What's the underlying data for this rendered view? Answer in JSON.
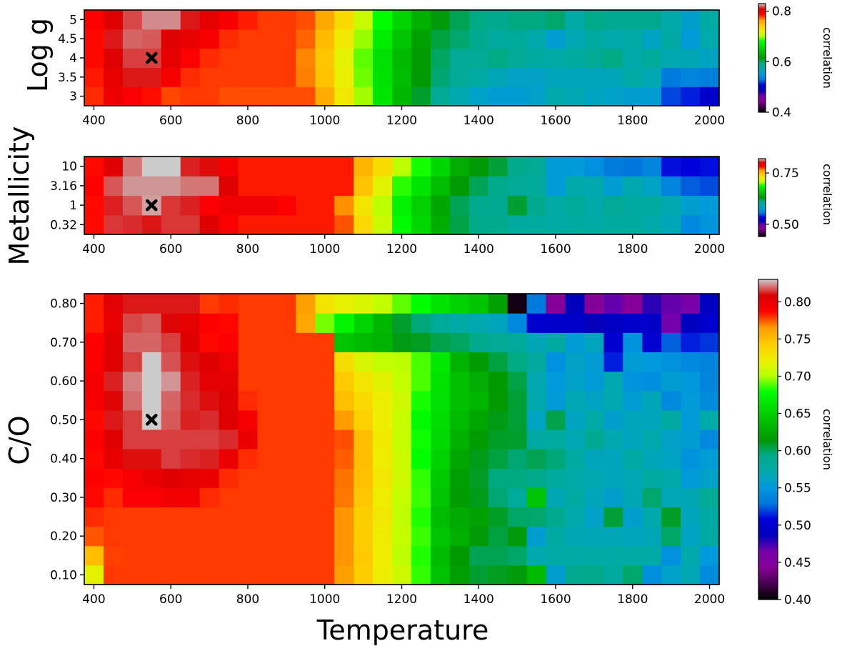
{
  "figure": {
    "xlabel": "Temperature"
  },
  "chart_data": [
    {
      "type": "heatmap",
      "ylabel": "Log g",
      "x": [
        400,
        450,
        500,
        550,
        600,
        650,
        700,
        750,
        800,
        850,
        900,
        950,
        1000,
        1050,
        1100,
        1150,
        1200,
        1250,
        1300,
        1350,
        1400,
        1450,
        1500,
        1550,
        1600,
        1650,
        1700,
        1750,
        1800,
        1850,
        1900,
        1950,
        2000
      ],
      "y": [
        "3",
        "3.5",
        "4",
        "4.5",
        "5"
      ],
      "xticks": [
        "400",
        "600",
        "800",
        "1000",
        "1200",
        "1400",
        "1600",
        "1800",
        "2000"
      ],
      "xlim": [
        375,
        2025
      ],
      "z": [
        [
          0.781,
          0.797,
          0.79,
          0.785,
          0.777,
          0.779,
          0.779,
          0.776,
          0.776,
          0.776,
          0.776,
          0.776,
          0.758,
          0.727,
          0.698,
          0.664,
          0.634,
          0.608,
          0.586,
          0.57,
          0.56,
          0.555,
          0.555,
          0.559,
          0.571,
          0.569,
          0.563,
          0.56,
          0.557,
          0.555,
          0.52,
          0.513,
          0.496
        ],
        [
          0.784,
          0.803,
          0.811,
          0.811,
          0.793,
          0.781,
          0.779,
          0.779,
          0.779,
          0.779,
          0.779,
          0.769,
          0.748,
          0.72,
          0.692,
          0.662,
          0.637,
          0.614,
          0.597,
          0.585,
          0.575,
          0.567,
          0.561,
          0.561,
          0.565,
          0.565,
          0.564,
          0.566,
          0.574,
          0.569,
          0.531,
          0.538,
          0.534
        ],
        [
          0.786,
          0.808,
          0.815,
          0.815,
          0.802,
          0.788,
          0.781,
          0.779,
          0.779,
          0.779,
          0.779,
          0.768,
          0.746,
          0.718,
          0.69,
          0.66,
          0.636,
          0.616,
          0.6,
          0.586,
          0.586,
          0.594,
          0.585,
          0.579,
          0.574,
          0.58,
          0.585,
          0.594,
          0.572,
          0.582,
          0.57,
          0.568,
          0.563
        ],
        [
          0.786,
          0.811,
          0.819,
          0.818,
          0.807,
          0.801,
          0.791,
          0.781,
          0.779,
          0.779,
          0.779,
          0.773,
          0.751,
          0.725,
          0.697,
          0.668,
          0.643,
          0.621,
          0.605,
          0.598,
          0.59,
          0.58,
          0.583,
          0.572,
          0.556,
          0.569,
          0.578,
          0.571,
          0.575,
          0.562,
          0.577,
          0.552,
          0.571
        ],
        [
          0.789,
          0.807,
          0.816,
          0.823,
          0.823,
          0.811,
          0.802,
          0.791,
          0.783,
          0.779,
          0.779,
          0.776,
          0.759,
          0.735,
          0.707,
          0.678,
          0.652,
          0.63,
          0.613,
          0.602,
          0.594,
          0.59,
          0.595,
          0.595,
          0.598,
          0.575,
          0.593,
          0.588,
          0.587,
          0.59,
          0.573,
          0.558,
          0.575
        ]
      ],
      "marker": {
        "x": 550,
        "y": "4"
      },
      "colorbar": {
        "label": "correlation",
        "min": 0.4,
        "max": 0.83,
        "ticks": [
          "0.4",
          "0.6",
          "0.8"
        ]
      }
    },
    {
      "type": "heatmap",
      "ylabel": "Metallicity",
      "x": [
        400,
        450,
        500,
        550,
        600,
        650,
        700,
        750,
        800,
        850,
        900,
        950,
        1000,
        1050,
        1100,
        1150,
        1200,
        1250,
        1300,
        1350,
        1400,
        1450,
        1500,
        1550,
        1600,
        1650,
        1700,
        1750,
        1800,
        1850,
        1900,
        1950,
        2000
      ],
      "y": [
        "0.32",
        "1",
        "3.16",
        "10"
      ],
      "xticks": [
        "400",
        "600",
        "800",
        "1000",
        "1200",
        "1400",
        "1600",
        "1800",
        "2000"
      ],
      "xlim": [
        375,
        2025
      ],
      "z": [
        [
          0.781,
          0.806,
          0.805,
          0.803,
          0.806,
          0.806,
          0.799,
          0.784,
          0.779,
          0.779,
          0.779,
          0.779,
          0.779,
          0.772,
          0.737,
          0.712,
          0.684,
          0.665,
          0.641,
          0.62,
          0.611,
          0.608,
          0.6,
          0.598,
          0.595,
          0.596,
          0.595,
          0.6,
          0.598,
          0.593,
          0.587,
          0.564,
          0.57
        ],
        [
          0.781,
          0.804,
          0.809,
          0.816,
          0.806,
          0.804,
          0.784,
          0.79,
          0.79,
          0.79,
          0.783,
          0.779,
          0.779,
          0.764,
          0.73,
          0.706,
          0.68,
          0.661,
          0.637,
          0.618,
          0.607,
          0.606,
          0.623,
          0.608,
          0.595,
          0.602,
          0.593,
          0.603,
          0.597,
          0.598,
          0.59,
          0.579,
          0.575
        ],
        [
          0.783,
          0.809,
          0.815,
          0.815,
          0.815,
          0.812,
          0.812,
          0.8,
          0.779,
          0.779,
          0.779,
          0.779,
          0.779,
          0.779,
          0.747,
          0.721,
          0.691,
          0.672,
          0.649,
          0.629,
          0.618,
          0.609,
          0.604,
          0.599,
          0.575,
          0.592,
          0.59,
          0.577,
          0.59,
          0.582,
          0.562,
          0.55,
          0.547
        ],
        [
          0.781,
          0.8,
          0.812,
          0.825,
          0.825,
          0.804,
          0.802,
          0.787,
          0.779,
          0.779,
          0.779,
          0.779,
          0.779,
          0.779,
          0.753,
          0.735,
          0.707,
          0.689,
          0.665,
          0.641,
          0.629,
          0.622,
          0.61,
          0.604,
          0.575,
          0.575,
          0.568,
          0.557,
          0.554,
          0.561,
          0.537,
          0.534,
          0.537
        ]
      ],
      "marker": {
        "x": 550,
        "y": "1"
      },
      "colorbar": {
        "label": "correlation",
        "min": 0.44,
        "max": 0.82,
        "ticks": [
          "0.50",
          "0.75"
        ]
      }
    },
    {
      "type": "heatmap",
      "ylabel": "C/O",
      "x": [
        400,
        450,
        500,
        550,
        600,
        650,
        700,
        750,
        800,
        850,
        900,
        950,
        1000,
        1050,
        1100,
        1150,
        1200,
        1250,
        1300,
        1350,
        1400,
        1450,
        1500,
        1550,
        1600,
        1650,
        1700,
        1750,
        1800,
        1850,
        1900,
        1950,
        2000
      ],
      "y": [
        "0.10",
        "0.15",
        "0.20",
        "0.25",
        "0.30",
        "0.35",
        "0.40",
        "0.45",
        "0.50",
        "0.55",
        "0.60",
        "0.65",
        "0.70",
        "0.75",
        "0.80"
      ],
      "yticks": [
        "0.10",
        "0.20",
        "0.30",
        "0.40",
        "0.50",
        "0.60",
        "0.70",
        "0.80"
      ],
      "xticks": [
        "400",
        "600",
        "800",
        "1000",
        "1200",
        "1400",
        "1600",
        "1800",
        "2000"
      ],
      "xlim": [
        375,
        2025
      ],
      "z": [
        [
          0.718,
          0.779,
          0.779,
          0.779,
          0.779,
          0.779,
          0.779,
          0.779,
          0.779,
          0.779,
          0.779,
          0.779,
          0.779,
          0.763,
          0.744,
          0.722,
          0.708,
          0.685,
          0.641,
          0.619,
          0.607,
          0.61,
          0.613,
          0.636,
          0.557,
          0.59,
          0.592,
          0.58,
          0.598,
          0.544,
          0.56,
          0.569,
          0.542
        ],
        [
          0.75,
          0.778,
          0.779,
          0.779,
          0.779,
          0.779,
          0.779,
          0.779,
          0.779,
          0.779,
          0.779,
          0.779,
          0.779,
          0.766,
          0.745,
          0.724,
          0.702,
          0.683,
          0.636,
          0.615,
          0.602,
          0.602,
          0.599,
          0.571,
          0.575,
          0.575,
          0.575,
          0.575,
          0.575,
          0.575,
          0.545,
          0.571,
          0.551
        ],
        [
          0.775,
          0.779,
          0.779,
          0.779,
          0.779,
          0.779,
          0.779,
          0.779,
          0.779,
          0.779,
          0.779,
          0.779,
          0.779,
          0.766,
          0.744,
          0.723,
          0.705,
          0.686,
          0.642,
          0.629,
          0.614,
          0.605,
          0.613,
          0.556,
          0.577,
          0.568,
          0.567,
          0.567,
          0.564,
          0.567,
          0.599,
          0.562,
          0.577
        ],
        [
          0.781,
          0.779,
          0.779,
          0.779,
          0.779,
          0.779,
          0.779,
          0.779,
          0.779,
          0.779,
          0.779,
          0.779,
          0.779,
          0.766,
          0.742,
          0.726,
          0.702,
          0.683,
          0.637,
          0.626,
          0.62,
          0.609,
          0.599,
          0.598,
          0.589,
          0.572,
          0.56,
          0.606,
          0.558,
          0.571,
          0.609,
          0.564,
          0.578
        ],
        [
          0.786,
          0.781,
          0.79,
          0.79,
          0.795,
          0.795,
          0.781,
          0.779,
          0.779,
          0.779,
          0.779,
          0.779,
          0.779,
          0.77,
          0.746,
          0.723,
          0.704,
          0.686,
          0.642,
          0.617,
          0.611,
          0.597,
          0.582,
          0.642,
          0.568,
          0.577,
          0.566,
          0.558,
          0.568,
          0.598,
          0.567,
          0.568,
          0.585
        ],
        [
          0.787,
          0.786,
          0.792,
          0.798,
          0.806,
          0.803,
          0.797,
          0.781,
          0.779,
          0.779,
          0.779,
          0.779,
          0.779,
          0.771,
          0.749,
          0.727,
          0.708,
          0.685,
          0.646,
          0.618,
          0.609,
          0.595,
          0.595,
          0.592,
          0.581,
          0.573,
          0.57,
          0.565,
          0.569,
          0.579,
          0.573,
          0.552,
          0.559
        ],
        [
          0.786,
          0.803,
          0.81,
          0.81,
          0.815,
          0.813,
          0.812,
          0.799,
          0.781,
          0.779,
          0.779,
          0.779,
          0.779,
          0.774,
          0.75,
          0.724,
          0.707,
          0.679,
          0.651,
          0.624,
          0.611,
          0.605,
          0.597,
          0.602,
          0.596,
          0.578,
          0.565,
          0.564,
          0.576,
          0.567,
          0.562,
          0.547,
          0.554
        ],
        [
          0.788,
          0.806,
          0.815,
          0.815,
          0.815,
          0.815,
          0.815,
          0.813,
          0.799,
          0.779,
          0.779,
          0.779,
          0.779,
          0.776,
          0.75,
          0.725,
          0.705,
          0.681,
          0.656,
          0.63,
          0.617,
          0.609,
          0.608,
          0.577,
          0.58,
          0.569,
          0.587,
          0.57,
          0.564,
          0.571,
          0.561,
          0.555,
          0.541
        ],
        [
          0.786,
          0.811,
          0.815,
          0.831,
          0.818,
          0.812,
          0.813,
          0.806,
          0.793,
          0.779,
          0.779,
          0.779,
          0.779,
          0.764,
          0.741,
          0.722,
          0.706,
          0.677,
          0.657,
          0.636,
          0.623,
          0.612,
          0.607,
          0.563,
          0.603,
          0.563,
          0.574,
          0.558,
          0.565,
          0.565,
          0.578,
          0.552,
          0.573
        ],
        [
          0.792,
          0.809,
          0.82,
          0.831,
          0.819,
          0.813,
          0.81,
          0.807,
          0.781,
          0.779,
          0.779,
          0.779,
          0.779,
          0.749,
          0.736,
          0.722,
          0.708,
          0.682,
          0.66,
          0.64,
          0.633,
          0.615,
          0.607,
          0.571,
          0.553,
          0.569,
          0.563,
          0.57,
          0.555,
          0.566,
          0.541,
          0.552,
          0.542
        ],
        [
          0.794,
          0.812,
          0.822,
          0.831,
          0.824,
          0.812,
          0.805,
          0.804,
          0.779,
          0.779,
          0.779,
          0.779,
          0.779,
          0.745,
          0.728,
          0.717,
          0.704,
          0.688,
          0.662,
          0.64,
          0.627,
          0.615,
          0.604,
          0.57,
          0.551,
          0.56,
          0.553,
          0.57,
          0.547,
          0.544,
          0.556,
          0.549,
          0.538
        ],
        [
          0.789,
          0.807,
          0.815,
          0.831,
          0.817,
          0.81,
          0.807,
          0.797,
          0.779,
          0.779,
          0.779,
          0.779,
          0.779,
          0.733,
          0.712,
          0.704,
          0.701,
          0.688,
          0.666,
          0.632,
          0.616,
          0.605,
          0.594,
          0.58,
          0.545,
          0.561,
          0.554,
          0.513,
          0.554,
          0.551,
          0.546,
          0.541,
          0.536
        ],
        [
          0.787,
          0.806,
          0.819,
          0.819,
          0.815,
          0.807,
          0.786,
          0.787,
          0.779,
          0.779,
          0.779,
          0.779,
          0.779,
          0.642,
          0.636,
          0.631,
          0.612,
          0.61,
          0.603,
          0.6,
          0.592,
          0.585,
          0.582,
          0.567,
          0.578,
          0.554,
          0.564,
          0.5,
          0.547,
          0.5,
          0.525,
          0.513,
          0.517
        ],
        [
          0.783,
          0.801,
          0.816,
          0.818,
          0.809,
          0.803,
          0.789,
          0.786,
          0.779,
          0.779,
          0.779,
          0.761,
          0.693,
          0.674,
          0.652,
          0.634,
          0.608,
          0.596,
          0.583,
          0.574,
          0.57,
          0.564,
          0.541,
          0.498,
          0.497,
          0.497,
          0.485,
          0.492,
          0.496,
          0.496,
          0.465,
          0.49,
          0.498
        ],
        [
          0.783,
          0.805,
          0.811,
          0.811,
          0.811,
          0.811,
          0.779,
          0.781,
          0.779,
          0.779,
          0.779,
          0.763,
          0.729,
          0.719,
          0.713,
          0.704,
          0.69,
          0.678,
          0.662,
          0.651,
          0.643,
          0.62,
          0.405,
          0.531,
          0.445,
          0.487,
          0.445,
          0.468,
          0.445,
          0.478,
          0.468,
          0.463,
          0.491
        ]
      ],
      "marker": {
        "x": 550,
        "y": "0.50"
      },
      "colorbar": {
        "label": "correlation",
        "min": 0.4,
        "max": 0.83,
        "ticks": [
          "0.40",
          "0.45",
          "0.50",
          "0.55",
          "0.60",
          "0.65",
          "0.70",
          "0.75",
          "0.80"
        ]
      }
    }
  ],
  "colormap": {
    "name": "nipy_spectral",
    "stops": [
      [
        0.0,
        "#000000"
      ],
      [
        0.05,
        "#470051"
      ],
      [
        0.1,
        "#860097"
      ],
      [
        0.15,
        "#7700aa"
      ],
      [
        0.2,
        "#0000bb"
      ],
      [
        0.25,
        "#0000dd"
      ],
      [
        0.3,
        "#0077dd"
      ],
      [
        0.35,
        "#0099dd"
      ],
      [
        0.4,
        "#00aaaa"
      ],
      [
        0.45,
        "#00aa88"
      ],
      [
        0.5,
        "#009900"
      ],
      [
        0.55,
        "#00bb00"
      ],
      [
        0.6,
        "#00dd00"
      ],
      [
        0.65,
        "#00ff00"
      ],
      [
        0.7,
        "#bbff00"
      ],
      [
        0.75,
        "#eeee00"
      ],
      [
        0.8,
        "#ffcc00"
      ],
      [
        0.85,
        "#ff9900"
      ],
      [
        0.9,
        "#ff0000"
      ],
      [
        0.95,
        "#dd0000"
      ],
      [
        1.0,
        "#cccccc"
      ]
    ]
  }
}
